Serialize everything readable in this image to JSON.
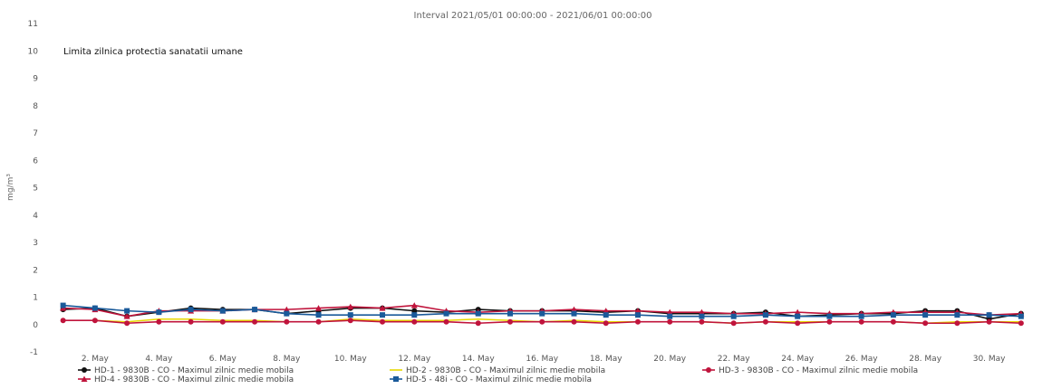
{
  "chart_data": {
    "type": "line",
    "title": "Interval 2021/05/01 00:00:00 - 2021/06/01 00:00:00",
    "ylabel": "mg/m³",
    "xlabel": "",
    "ylim": [
      -1,
      11
    ],
    "yticks": [
      -1,
      0,
      1,
      2,
      3,
      4,
      5,
      6,
      7,
      8,
      9,
      10,
      11
    ],
    "grid": false,
    "legend_position": "bottom",
    "x_tick_labels": [
      "2. May",
      "4. May",
      "6. May",
      "8. May",
      "10. May",
      "12. May",
      "14. May",
      "16. May",
      "18. May",
      "20. May",
      "22. May",
      "24. May",
      "26. May",
      "28. May",
      "30. May"
    ],
    "x_tick_days": [
      2,
      4,
      6,
      8,
      10,
      12,
      14,
      16,
      18,
      20,
      22,
      24,
      26,
      28,
      30
    ],
    "x": [
      1,
      2,
      3,
      4,
      5,
      6,
      7,
      8,
      9,
      10,
      11,
      12,
      13,
      14,
      15,
      16,
      17,
      18,
      19,
      20,
      21,
      22,
      23,
      24,
      25,
      26,
      27,
      28,
      29,
      30,
      31
    ],
    "annotation": "Limita zilnica protectia sanatatii umane",
    "annotation_value": 10,
    "series": [
      {
        "name": "HD-1 - 9830B - CO - Maximul zilnic medie mobila",
        "color": "#111111",
        "marker": "circle",
        "values": [
          0.55,
          0.6,
          0.3,
          0.45,
          0.6,
          0.55,
          0.55,
          0.4,
          0.5,
          0.6,
          0.6,
          0.5,
          0.45,
          0.55,
          0.5,
          0.5,
          0.5,
          0.45,
          0.5,
          0.4,
          0.4,
          0.4,
          0.45,
          0.3,
          0.35,
          0.4,
          0.4,
          0.5,
          0.5,
          0.2,
          0.4
        ]
      },
      {
        "name": "HD-2 - 9830B - CO - Maximul zilnic medie mobila",
        "color": "#e8d800",
        "marker": "none",
        "values": [
          0.15,
          0.15,
          0.1,
          0.2,
          0.2,
          0.15,
          0.15,
          0.1,
          0.1,
          0.2,
          0.15,
          0.15,
          0.15,
          0.2,
          0.15,
          0.1,
          0.15,
          0.1,
          0.1,
          0.1,
          0.1,
          0.05,
          0.1,
          0.1,
          0.1,
          0.1,
          0.1,
          0.05,
          0.1,
          0.1,
          0.1
        ]
      },
      {
        "name": "HD-3 - 9830B - CO - Maximul zilnic medie mobila",
        "color": "#c0143c",
        "marker": "circle",
        "values": [
          0.15,
          0.15,
          0.05,
          0.1,
          0.1,
          0.1,
          0.1,
          0.1,
          0.1,
          0.15,
          0.1,
          0.1,
          0.1,
          0.05,
          0.1,
          0.1,
          0.1,
          0.05,
          0.1,
          0.1,
          0.1,
          0.05,
          0.1,
          0.05,
          0.1,
          0.1,
          0.1,
          0.05,
          0.05,
          0.1,
          0.05
        ]
      },
      {
        "name": "HD-4 - 9830B - CO - Maximul zilnic medie mobila",
        "color": "#c0143c",
        "marker": "triangle",
        "values": [
          0.6,
          0.55,
          0.3,
          0.5,
          0.5,
          0.5,
          0.55,
          0.55,
          0.6,
          0.65,
          0.6,
          0.7,
          0.5,
          0.45,
          0.5,
          0.5,
          0.55,
          0.5,
          0.5,
          0.45,
          0.45,
          0.4,
          0.4,
          0.45,
          0.4,
          0.4,
          0.45,
          0.45,
          0.45,
          0.35,
          0.4
        ]
      },
      {
        "name": "HD-5 - 48i - CO - Maximul zilnic medie mobila",
        "color": "#1a5a9a",
        "marker": "square",
        "values": [
          0.7,
          0.6,
          0.5,
          0.45,
          0.55,
          0.5,
          0.55,
          0.4,
          0.35,
          0.35,
          0.35,
          0.35,
          0.4,
          0.4,
          0.4,
          0.4,
          0.4,
          0.35,
          0.35,
          0.3,
          0.3,
          0.3,
          0.35,
          0.3,
          0.3,
          0.3,
          0.35,
          0.35,
          0.35,
          0.35,
          0.3
        ]
      }
    ]
  }
}
